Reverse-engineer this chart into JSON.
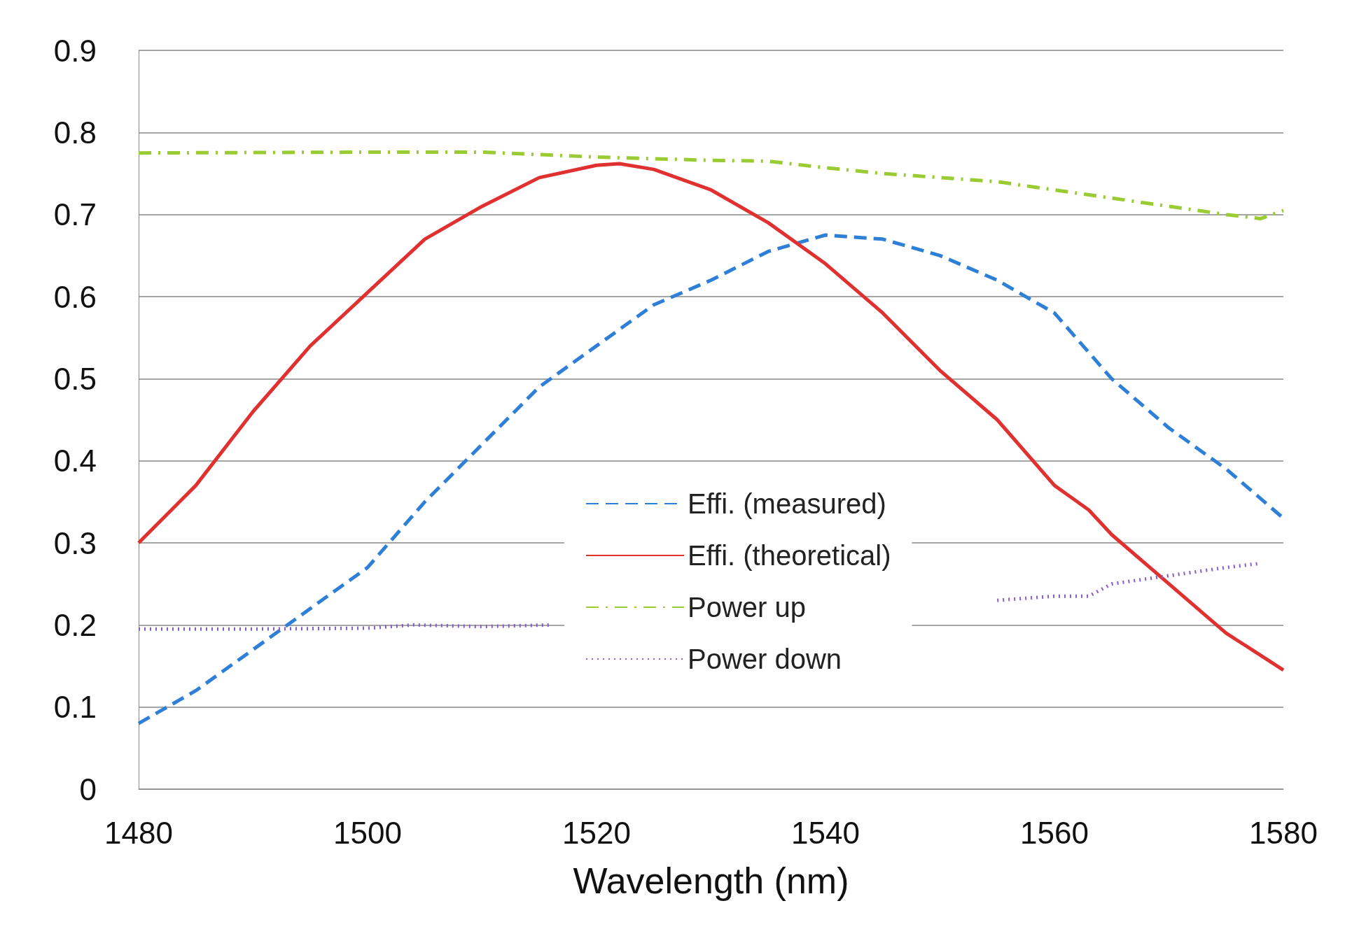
{
  "chart_data": {
    "type": "line",
    "xlabel": "Wavelength (nm)",
    "xlim": [
      1480,
      1580
    ],
    "xticks": [
      1480,
      1500,
      1520,
      1540,
      1560,
      1580
    ],
    "ylim": [
      0,
      0.9
    ],
    "yticks": [
      0,
      0.1,
      0.2,
      0.3,
      0.4,
      0.5,
      0.6,
      0.7,
      0.8,
      0.9
    ],
    "grid": "y",
    "legend": "bottom",
    "marker": "none",
    "series": [
      {
        "name": "Effi. (measured)",
        "color": "#2e7fd8",
        "line_style": "dashed",
        "x": [
          1480,
          1485,
          1490,
          1495,
          1500,
          1505,
          1510,
          1515,
          1520,
          1525,
          1530,
          1535,
          1540,
          1545,
          1550,
          1555,
          1560,
          1565,
          1570,
          1575,
          1580
        ],
        "values": [
          0.08,
          0.12,
          0.17,
          0.22,
          0.27,
          0.35,
          0.42,
          0.49,
          0.54,
          0.59,
          0.62,
          0.655,
          0.675,
          0.67,
          0.65,
          0.62,
          0.58,
          0.5,
          0.44,
          0.39,
          0.33
        ]
      },
      {
        "name": "Effi. (theoretical)",
        "color": "#e03030",
        "line_style": "solid",
        "x": [
          1480,
          1485,
          1490,
          1495,
          1500,
          1505,
          1510,
          1515,
          1520,
          1522,
          1525,
          1530,
          1535,
          1540,
          1545,
          1550,
          1555,
          1560,
          1563,
          1565,
          1570,
          1575,
          1580
        ],
        "values": [
          0.3,
          0.37,
          0.46,
          0.54,
          0.605,
          0.67,
          0.71,
          0.745,
          0.76,
          0.762,
          0.755,
          0.73,
          0.69,
          0.64,
          0.58,
          0.51,
          0.45,
          0.37,
          0.34,
          0.31,
          0.25,
          0.19,
          0.145
        ]
      },
      {
        "name": "Power up",
        "color": "#99cc33",
        "line_style": "dashdot",
        "x": [
          1480,
          1500,
          1510,
          1520,
          1530,
          1535,
          1540,
          1545,
          1550,
          1555,
          1560,
          1565,
          1570,
          1575,
          1578,
          1580
        ],
        "values": [
          0.775,
          0.776,
          0.776,
          0.77,
          0.766,
          0.765,
          0.757,
          0.75,
          0.745,
          0.74,
          0.73,
          0.72,
          0.71,
          0.7,
          0.695,
          0.705
        ]
      },
      {
        "name": "Power down",
        "color": "#8a5cc8",
        "line_style": "dotted",
        "x": [
          1480,
          1490,
          1500,
          1504,
          1510,
          1516,
          1530,
          1554,
          1555,
          1560,
          1563,
          1565,
          1570,
          1575,
          1578
        ],
        "values": [
          0.195,
          0.195,
          0.196,
          0.2,
          0.198,
          0.2,
          null,
          null,
          0.23,
          0.235,
          0.235,
          0.25,
          0.26,
          0.27,
          0.275
        ]
      }
    ]
  }
}
